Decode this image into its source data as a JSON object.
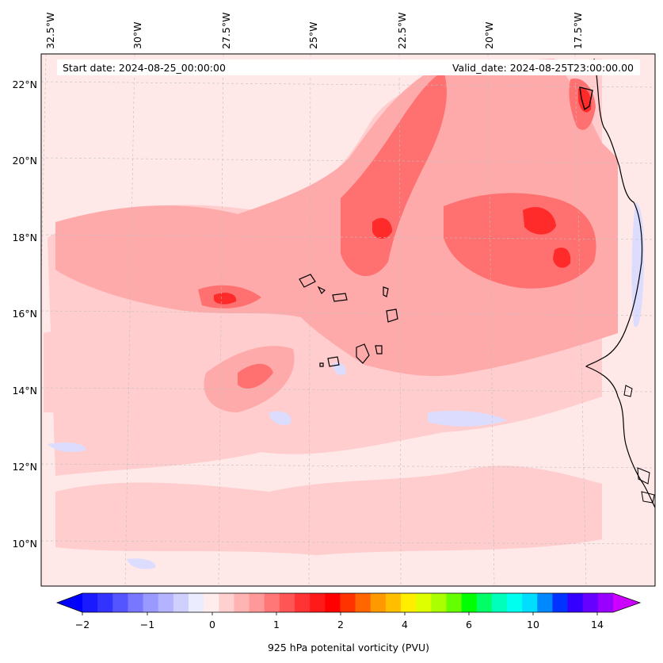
{
  "map": {
    "start_date_label": "Start date: 2024-08-25_00:00:00",
    "valid_date_label": "Valid_date: 2024-08-25T23:00:00.00",
    "lon_labels": [
      "32.5°W",
      "30°W",
      "27.5°W",
      "25°W",
      "22.5°W",
      "20°W",
      "17.5°W"
    ],
    "lat_labels": [
      "22°N",
      "20°N",
      "18°N",
      "16°N",
      "14°N",
      "12°N",
      "10°N"
    ],
    "background_color": "#ffe8e8",
    "coastline_color": "#000000"
  },
  "colorbar": {
    "title": "925 hPa potenital vorticity (PVU)",
    "tick_labels": [
      "−2",
      "−1",
      "0",
      "1",
      "2",
      "4",
      "6",
      "10",
      "14"
    ],
    "under_color": "#0000ff",
    "over_color": "#cc00ff",
    "colors": [
      "#1a1aff",
      "#3333ff",
      "#5555ff",
      "#7777ff",
      "#9999ff",
      "#b3b3ff",
      "#d0d0ff",
      "#ececff",
      "#ffecec",
      "#ffd0d0",
      "#ffb3b3",
      "#ff9999",
      "#ff7777",
      "#ff5555",
      "#ff3333",
      "#ff1a1a",
      "#ff0000",
      "#ff3300",
      "#ff6600",
      "#ff9900",
      "#ffbf00",
      "#ffee00",
      "#ddff00",
      "#aaff00",
      "#66ff00",
      "#00ff00",
      "#00ff66",
      "#00ffbb",
      "#00ffee",
      "#00ddff",
      "#0088ff",
      "#0033ff",
      "#3300ff",
      "#6600ff",
      "#9900ff"
    ]
  }
}
